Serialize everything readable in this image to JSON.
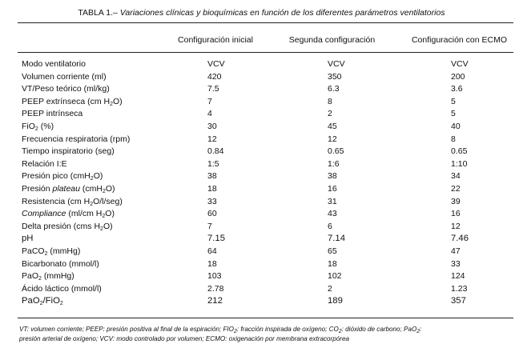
{
  "table": {
    "title_number": "TABLA 1.–",
    "title_text": "Variaciones clínicas y bioquímicas en función de los diferentes parámetros ventilatorios",
    "columns": [
      "Configuración inicial",
      "Segunda configuración",
      "Configuración con ECMO"
    ],
    "rows": [
      {
        "label": "Modo ventilatorio",
        "values": [
          "VCV",
          "VCV",
          "VCV"
        ]
      },
      {
        "label": "Volumen corriente (ml)",
        "values": [
          "420",
          "350",
          "200"
        ]
      },
      {
        "label": "VT/Peso teórico (ml/kg)",
        "values": [
          "7.5",
          "6.3",
          "3.6"
        ]
      },
      {
        "label": "PEEP extrínseca (cm H",
        "sub": "2",
        "label_after": "O)",
        "values": [
          "7",
          "8",
          "5"
        ]
      },
      {
        "label": "PEEP intrínseca",
        "values": [
          "4",
          "2",
          "5"
        ]
      },
      {
        "label": "FiO",
        "sub": "2",
        "label_after": " (%)",
        "values": [
          "30",
          "45",
          "40"
        ]
      },
      {
        "label": "Frecuencia respiratoria (rpm)",
        "values": [
          "12",
          "12",
          "8"
        ]
      },
      {
        "label": "Tiempo inspiratorio (seg)",
        "values": [
          "0.84",
          "0.65",
          "0.65"
        ]
      },
      {
        "label": "Relación I:E",
        "values": [
          "1:5",
          "1:6",
          "1:10"
        ]
      },
      {
        "label": "Presión pico (cmH",
        "sub": "2",
        "label_after": "O)",
        "values": [
          "38",
          "38",
          "34"
        ]
      },
      {
        "label": "Presión ",
        "label_italic": "plateau",
        "label_mid": " (cmH",
        "sub": "2",
        "label_after": "O)",
        "values": [
          "18",
          "16",
          "22"
        ]
      },
      {
        "label": "Resistencia (cm H",
        "sub": "2",
        "label_after": "O/l/seg)",
        "values": [
          "33",
          "31",
          "39"
        ]
      },
      {
        "label_italic_first": "Compliance",
        "label": " (ml/cm H",
        "sub": "2",
        "label_after": "O)",
        "values": [
          "60",
          "43",
          "16"
        ]
      },
      {
        "label": "Delta presión (cms H",
        "sub": "2",
        "label_after": "O)",
        "values": [
          "7",
          "6",
          "12"
        ]
      },
      {
        "label": "pH",
        "big": true,
        "values": [
          "7.15",
          "7.14",
          "7.46"
        ]
      },
      {
        "label": "PaCO",
        "sub": "2",
        "label_after": " (mmHg)",
        "values": [
          "64",
          "65",
          "47"
        ]
      },
      {
        "label": "Bicarbonato (mmol/l)",
        "values": [
          "18",
          "18",
          "33"
        ]
      },
      {
        "label": "PaO",
        "sub": "2",
        "label_after": " (mmHg)",
        "values": [
          "103",
          "102",
          "124"
        ]
      },
      {
        "label": "Ácido láctico (mmol/l)",
        "values": [
          "2.78",
          "2",
          "1.23"
        ]
      },
      {
        "label": "PaO",
        "sub": "2",
        "label_after": "/FiO",
        "sub2": "2",
        "big": true,
        "values": [
          "212",
          "189",
          "357"
        ]
      }
    ],
    "footnote": {
      "line1_a": "VT: volumen corriente; PEEP: presión positiva al final de la espiración; FIO",
      "line1_sub1": "2",
      "line1_b": ": fracción inspirada de oxígeno; CO",
      "line1_sub2": "2",
      "line1_c": ": dióxido de carbono; PaO",
      "line1_sub3": "2",
      "line1_d": ":",
      "line2": "presión arterial de oxígeno; VCV: modo controlado por volumen; ECMO: oxigenación por membrana extracorpórea"
    }
  }
}
